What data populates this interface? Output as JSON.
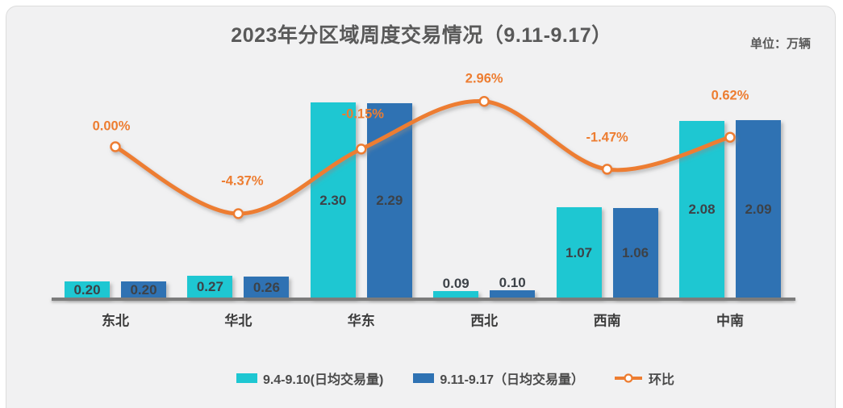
{
  "header": {
    "title": "2023年分区域周度交易情况（9.11-9.17）",
    "unit_label": "单位：万辆"
  },
  "chart_data": {
    "type": "bar",
    "subtype": "grouped-bar-with-smooth-line-overlay",
    "title": "2023年分区域周度交易情况（9.11-9.17）",
    "unit": "万辆",
    "xlabel": "",
    "ylabel": "",
    "value_axis_visible": false,
    "grid": false,
    "legend_position": "bottom",
    "background_color": "#F1F1F2",
    "axis_line_color": "#7C7C7C",
    "categories": [
      "东北",
      "华北",
      "华东",
      "西北",
      "西南",
      "中南"
    ],
    "series": [
      {
        "name": "9.4-9.10(日均交易量)",
        "type": "bar",
        "color": "#1EC7D2",
        "values": [
          0.2,
          0.27,
          2.3,
          0.09,
          1.07,
          2.08
        ],
        "value_labels": [
          "0.20",
          "0.27",
          "2.30",
          "0.09",
          "1.07",
          "2.08"
        ]
      },
      {
        "name": "9.11-9.17（日均交易量）",
        "type": "bar",
        "color": "#2F72B3",
        "values": [
          0.2,
          0.26,
          2.29,
          0.1,
          1.06,
          2.09
        ],
        "value_labels": [
          "0.20",
          "0.26",
          "2.29",
          "0.10",
          "1.06",
          "2.09"
        ]
      },
      {
        "name": "环比",
        "type": "line",
        "axis": "secondary",
        "color": "#ED7D31",
        "marker": "circle-white-fill-orange-ring",
        "values": [
          0.0,
          -4.37,
          -0.15,
          2.96,
          -1.47,
          0.62
        ],
        "value_labels": [
          "0.00%",
          "-4.37%",
          "-0.15%",
          "2.96%",
          "-1.47%",
          "0.62%"
        ]
      }
    ],
    "text_colors": {
      "title": "#595959",
      "bar_value_labels": "#3D4248",
      "percent_labels": "#ED7D31",
      "category_labels": "#3C3C3C",
      "legend": "#4A4A4A"
    }
  }
}
